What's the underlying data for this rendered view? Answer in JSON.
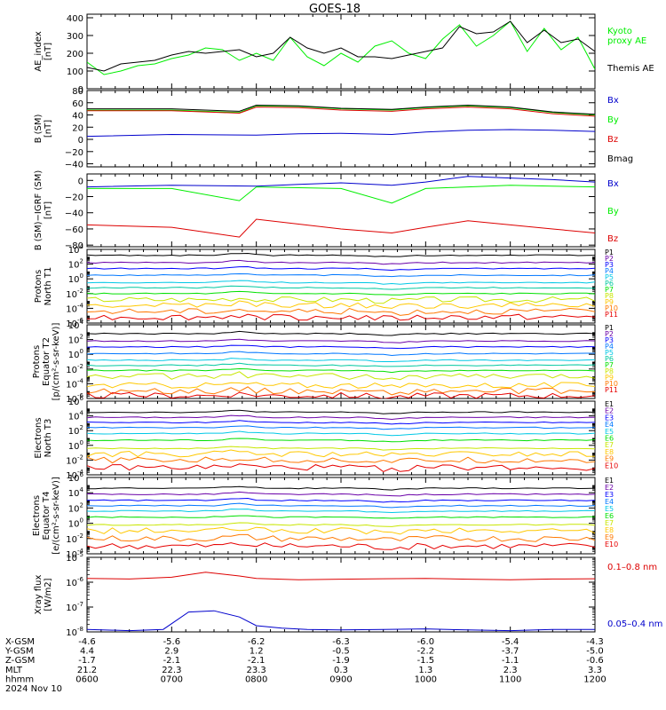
{
  "title": "GOES-18",
  "colors": {
    "axes": "#000000",
    "black": "#000000",
    "green": "#00ee00",
    "blue": "#0000cc",
    "red": "#dd0000",
    "ch_p": [
      "#000000",
      "#6a00a8",
      "#0000ff",
      "#0077ff",
      "#00c8e6",
      "#00c8a0",
      "#00e000",
      "#c8e600",
      "#ffc800",
      "#ff7800",
      "#e60000"
    ],
    "ch_e": [
      "#000000",
      "#6a00a8",
      "#0000ff",
      "#0077ff",
      "#00c8e6",
      "#00e000",
      "#c8e600",
      "#ffc800",
      "#ff7800",
      "#e60000"
    ]
  },
  "xaxis": {
    "ticks": [
      "0600",
      "0700",
      "0800",
      "0900",
      "1000",
      "1100",
      "1200"
    ],
    "row_labels": [
      "X-GSM",
      "Y-GSM",
      "Z-GSM",
      "MLT",
      "hhmm"
    ],
    "rows": [
      [
        "-4.6",
        "-5.6",
        "-6.2",
        "-6.3",
        "-6.0",
        "-5.4",
        "-4.3"
      ],
      [
        "4.4",
        "2.9",
        "1.2",
        "-0.5",
        "-2.2",
        "-3.7",
        "-5.0"
      ],
      [
        "-1.7",
        "-2.1",
        "-2.1",
        "-1.9",
        "-1.5",
        "-1.1",
        "-0.6"
      ],
      [
        "21.2",
        "22.3",
        "23.3",
        "0.3",
        "1.3",
        "2.3",
        "3.3"
      ],
      [
        "0600",
        "0700",
        "0800",
        "0900",
        "1000",
        "1100",
        "1200"
      ]
    ],
    "date": "2024 Nov 10"
  },
  "chart_data": [
    {
      "type": "line",
      "ylabel": "AE_index\n[nT]",
      "ylim": [
        0,
        420
      ],
      "yticks": [
        0,
        100,
        200,
        300,
        400
      ],
      "yticklabels": [
        "0",
        "100",
        "200",
        "300",
        "400"
      ],
      "series": [
        {
          "name": "Kyoto\nproxy AE",
          "color": "green",
          "x": [
            6.0,
            6.2,
            6.4,
            6.6,
            6.8,
            7.0,
            7.2,
            7.4,
            7.6,
            7.8,
            8.0,
            8.2,
            8.4,
            8.6,
            8.8,
            9.0,
            9.2,
            9.4,
            9.6,
            9.8,
            10.0,
            10.2,
            10.4,
            10.6,
            10.8,
            11.0,
            11.2,
            11.4,
            11.6,
            11.8,
            12.0
          ],
          "y": [
            150,
            80,
            100,
            130,
            140,
            170,
            190,
            230,
            220,
            160,
            200,
            160,
            290,
            180,
            130,
            200,
            150,
            240,
            270,
            200,
            170,
            280,
            360,
            240,
            300,
            380,
            210,
            340,
            220,
            290,
            110
          ]
        },
        {
          "name": "Themis AE",
          "color": "black",
          "x": [
            6.0,
            6.2,
            6.4,
            6.6,
            6.8,
            7.0,
            7.2,
            7.4,
            7.6,
            7.8,
            8.0,
            8.2,
            8.4,
            8.6,
            8.8,
            9.0,
            9.2,
            9.4,
            9.6,
            9.8,
            10.0,
            10.2,
            10.4,
            10.6,
            10.8,
            11.0,
            11.2,
            11.4,
            11.6,
            11.8,
            12.0
          ],
          "y": [
            120,
            100,
            140,
            150,
            160,
            190,
            210,
            200,
            210,
            220,
            180,
            200,
            290,
            230,
            200,
            230,
            180,
            180,
            170,
            190,
            210,
            230,
            350,
            310,
            320,
            380,
            260,
            330,
            260,
            280,
            210
          ]
        }
      ]
    },
    {
      "type": "line",
      "ylabel": "B (SM)\n[nT]",
      "ylim": [
        -45,
        80
      ],
      "yticks": [
        -40,
        -20,
        0,
        20,
        40,
        60,
        80
      ],
      "yticklabels": [
        "−40",
        "−20",
        "0",
        "20",
        "40",
        "60",
        "80"
      ],
      "series": [
        {
          "name": "Bx",
          "color": "blue",
          "x": [
            6,
            7,
            8,
            8.5,
            9,
            9.6,
            10,
            10.5,
            11,
            11.5,
            12
          ],
          "y": [
            5,
            8,
            7,
            9,
            10,
            8,
            12,
            15,
            16,
            15,
            13
          ]
        },
        {
          "name": "By",
          "color": "green",
          "x": [
            6,
            7,
            7.8,
            8,
            8.5,
            9,
            9.6,
            10,
            10.5,
            11,
            11.5,
            12
          ],
          "y": [
            48,
            48,
            44,
            55,
            54,
            50,
            48,
            52,
            55,
            52,
            44,
            40
          ]
        },
        {
          "name": "Bz",
          "color": "red",
          "x": [
            6,
            7,
            7.8,
            8,
            8.5,
            9,
            9.6,
            10,
            10.5,
            11,
            11.5,
            12
          ],
          "y": [
            47,
            47,
            43,
            53,
            52,
            48,
            46,
            50,
            53,
            50,
            42,
            38
          ]
        },
        {
          "name": "Bmag",
          "color": "black",
          "x": [
            6,
            7,
            7.8,
            8,
            8.5,
            9,
            9.6,
            10,
            10.5,
            11,
            11.5,
            12
          ],
          "y": [
            50,
            50,
            46,
            56,
            55,
            51,
            49,
            53,
            56,
            53,
            45,
            41
          ]
        }
      ]
    },
    {
      "type": "line",
      "ylabel": "B (SM)−IGRF (SM)\n[nT]",
      "ylim": [
        -82,
        8
      ],
      "yticks": [
        -80,
        -60,
        -40,
        -20,
        0
      ],
      "yticklabels": [
        "−80",
        "−60",
        "−40",
        "−20",
        "0"
      ],
      "series": [
        {
          "name": "Bx",
          "color": "blue",
          "x": [
            6,
            7,
            8,
            8.5,
            9,
            9.6,
            10,
            10.5,
            11,
            11.5,
            12
          ],
          "y": [
            -8,
            -6,
            -7,
            -5,
            -3,
            -6,
            -2,
            5,
            3,
            1,
            -2
          ]
        },
        {
          "name": "By",
          "color": "green",
          "x": [
            6,
            7,
            7.8,
            8,
            8.5,
            9,
            9.6,
            10,
            10.5,
            11,
            11.5,
            12
          ],
          "y": [
            -10,
            -10,
            -25,
            -8,
            -9,
            -10,
            -28,
            -10,
            -8,
            -6,
            -7,
            -8
          ]
        },
        {
          "name": "Bz",
          "color": "red",
          "x": [
            6,
            7,
            7.8,
            8,
            8.5,
            9,
            9.6,
            10,
            10.5,
            11,
            11.5,
            12
          ],
          "y": [
            -55,
            -58,
            -70,
            -48,
            -54,
            -60,
            -65,
            -58,
            -50,
            -55,
            -60,
            -65
          ]
        }
      ]
    },
    {
      "type": "line",
      "ylabel": "Protons\nNorth T1",
      "yscale": "log",
      "ylim": [
        -6,
        4
      ],
      "yticks": [
        -6,
        -4,
        -2,
        0,
        2,
        4
      ],
      "series_names": [
        "P1",
        "P2",
        "P3",
        "P4",
        "P5",
        "P6",
        "P7",
        "P8",
        "P9",
        "P10",
        "P11"
      ],
      "levels": [
        3.2,
        2.2,
        1.4,
        0.5,
        -0.5,
        -1.2,
        -2.0,
        -2.8,
        -3.6,
        -4.4,
        -5.2
      ]
    },
    {
      "type": "line",
      "ylabel": "Protons\nEquator T2\n[p/(cm²-s-sr-keV)]",
      "yscale": "log",
      "ylim": [
        -6,
        4
      ],
      "yticks": [
        -6,
        -4,
        -2,
        0,
        2,
        4
      ],
      "series_names": [
        "P1",
        "P2",
        "P3",
        "P4",
        "P5",
        "P6",
        "P7",
        "P8",
        "P9",
        "P10",
        "P11"
      ],
      "levels": [
        2.8,
        1.8,
        1.0,
        0.1,
        -0.8,
        -1.5,
        -2.2,
        -3.0,
        -4.2,
        -5.0,
        -5.6
      ]
    },
    {
      "type": "line",
      "ylabel": "Electrons\nNorth T3",
      "yscale": "log",
      "ylim": [
        -4,
        6
      ],
      "yticks": [
        -4,
        -2,
        0,
        2,
        4,
        6
      ],
      "series_names": [
        "E1",
        "E2",
        "E3",
        "E4",
        "E5",
        "E6",
        "E7",
        "E8",
        "E9",
        "E10"
      ],
      "levels": [
        4.5,
        3.8,
        3.1,
        2.4,
        1.6,
        0.7,
        -0.4,
        -1.2,
        -2.0,
        -3.0
      ]
    },
    {
      "type": "line",
      "ylabel": "Electrons\nEquator T4\n[e/(cm²-s-sr-keV)]",
      "yscale": "log",
      "ylim": [
        -4,
        6
      ],
      "yticks": [
        -4,
        -2,
        0,
        2,
        4,
        6
      ],
      "series_names": [
        "E1",
        "E2",
        "E3",
        "E4",
        "E5",
        "E6",
        "E7",
        "E8",
        "E9",
        "E10"
      ],
      "levels": [
        4.6,
        3.8,
        3.0,
        2.3,
        1.6,
        0.8,
        -0.2,
        -1.0,
        -2.0,
        -3.0
      ]
    },
    {
      "type": "line",
      "ylabel": "Xray flux\n[W/m2]",
      "yscale": "log",
      "ylim": [
        -8,
        -5
      ],
      "yticks": [
        -8,
        -7,
        -6,
        -5
      ],
      "series": [
        {
          "name": "0.1–0.8 nm",
          "color": "red",
          "x": [
            6.0,
            6.5,
            7.0,
            7.4,
            7.8,
            8.0,
            8.5,
            9.0,
            9.5,
            10.0,
            10.5,
            11.0,
            11.5,
            12.0
          ],
          "y": [
            -5.85,
            -5.87,
            -5.8,
            -5.6,
            -5.75,
            -5.85,
            -5.9,
            -5.88,
            -5.86,
            -5.85,
            -5.88,
            -5.9,
            -5.87,
            -5.86
          ]
        },
        {
          "name": "0.05–0.4 nm",
          "color": "blue",
          "x": [
            6.0,
            6.5,
            6.9,
            7.2,
            7.5,
            7.8,
            8.0,
            8.3,
            8.6,
            9.0,
            9.5,
            10.0,
            10.5,
            11.0,
            11.5,
            12.0
          ],
          "y": [
            -7.9,
            -7.95,
            -7.9,
            -7.2,
            -7.15,
            -7.4,
            -7.75,
            -7.85,
            -7.9,
            -7.92,
            -7.9,
            -7.88,
            -7.92,
            -7.95,
            -7.9,
            -7.9
          ]
        }
      ]
    }
  ]
}
